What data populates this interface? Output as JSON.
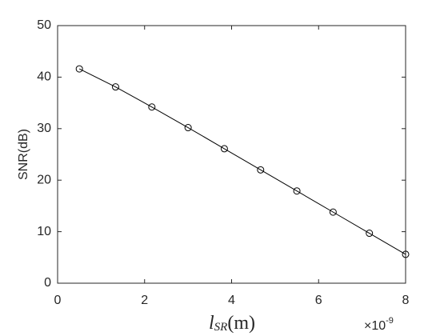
{
  "chart_data": {
    "type": "line",
    "ylabel": "SNR(dB)",
    "xlabel": {
      "main": "l",
      "sub": "SR",
      "rest": "(m)"
    },
    "x_scale": {
      "base": "×10",
      "exponent": "-9"
    },
    "x": [
      0.5,
      1.333,
      2.167,
      3.0,
      3.833,
      4.667,
      5.5,
      6.333,
      7.167,
      8.0
    ],
    "series": [
      {
        "color": "#000000",
        "marker": "circle",
        "values": [
          41.6,
          38.1,
          34.2,
          30.2,
          26.1,
          22.0,
          17.9,
          13.8,
          9.7,
          5.6
        ]
      }
    ],
    "xlim": [
      0,
      8
    ],
    "xticks": [
      0,
      2,
      4,
      6,
      8
    ],
    "ylim": [
      0,
      50
    ],
    "yticks": [
      0,
      10,
      20,
      30,
      40,
      50
    ],
    "grid": false
  }
}
